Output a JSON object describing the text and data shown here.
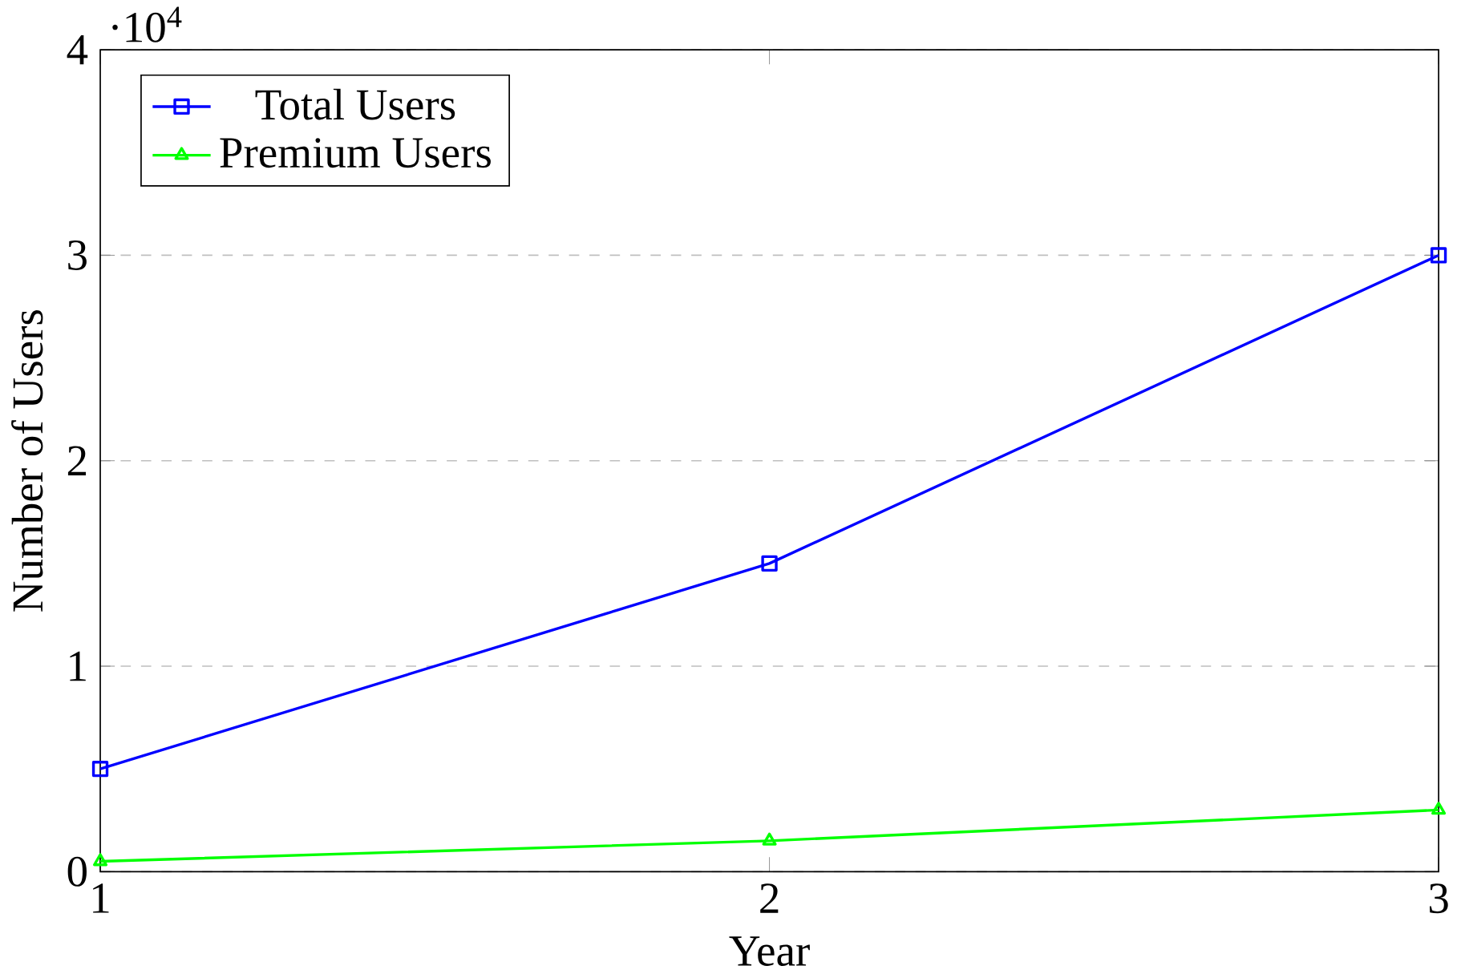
{
  "chart_data": {
    "type": "line",
    "xlabel": "Year",
    "ylabel": "Number of Users",
    "x": [
      1,
      2,
      3
    ],
    "series": [
      {
        "name": "Total Users",
        "color": "#0000ff",
        "marker": "square",
        "values": [
          0.5,
          1.5,
          3
        ]
      },
      {
        "name": "Premium Users",
        "color": "#00ff00",
        "marker": "triangle",
        "values": [
          0.05,
          0.15,
          0.3
        ]
      }
    ],
    "xlim": [
      1,
      3
    ],
    "xticks": [
      1,
      2,
      3
    ],
    "ylim": [
      0,
      4
    ],
    "yticks": [
      0,
      1,
      2,
      3,
      4
    ],
    "annotations": [
      "·10$^{4}$"
    ],
    "grid": "y",
    "legend": "top left",
    "line_style": "solid"
  }
}
